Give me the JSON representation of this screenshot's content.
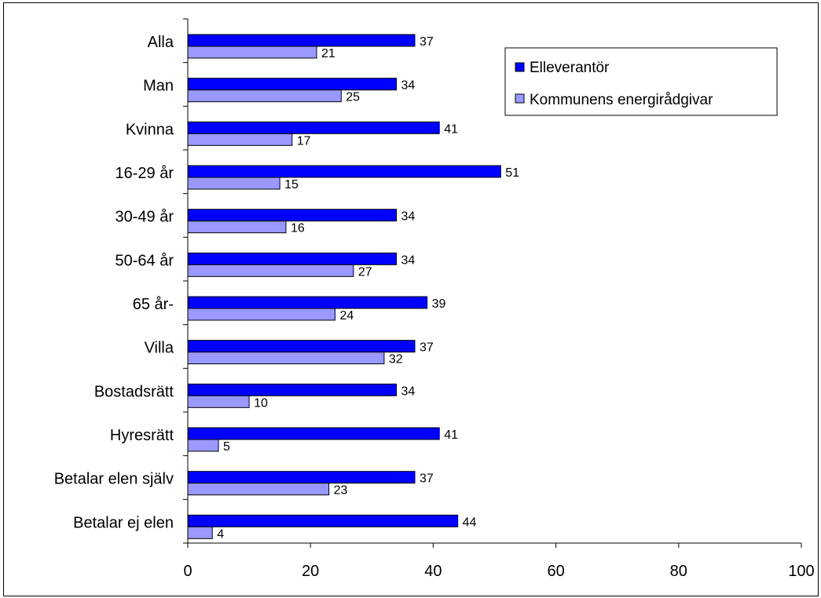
{
  "chart_data": {
    "type": "bar",
    "orientation": "horizontal",
    "categories": [
      "Alla",
      "Man",
      "Kvinna",
      "16-29 år",
      "30-49 år",
      "50-64 år",
      "65 år-",
      "Villa",
      "Bostadsrätt",
      "Hyresrätt",
      "Betalar elen själv",
      "Betalar ej elen"
    ],
    "series": [
      {
        "name": "Elleverantör",
        "values": [
          37,
          34,
          41,
          51,
          34,
          34,
          39,
          37,
          34,
          41,
          37,
          44
        ],
        "color": "#0000ff"
      },
      {
        "name": "Kommunens energirådgivar",
        "values": [
          21,
          25,
          17,
          15,
          16,
          27,
          24,
          32,
          10,
          5,
          23,
          4
        ],
        "color": "#9999ff"
      }
    ],
    "xlim": [
      0,
      100
    ],
    "xticks": [
      0,
      20,
      40,
      60,
      80,
      100
    ],
    "title": "",
    "xlabel": "",
    "ylabel": "",
    "grid": false,
    "legend_position": "top-right"
  }
}
